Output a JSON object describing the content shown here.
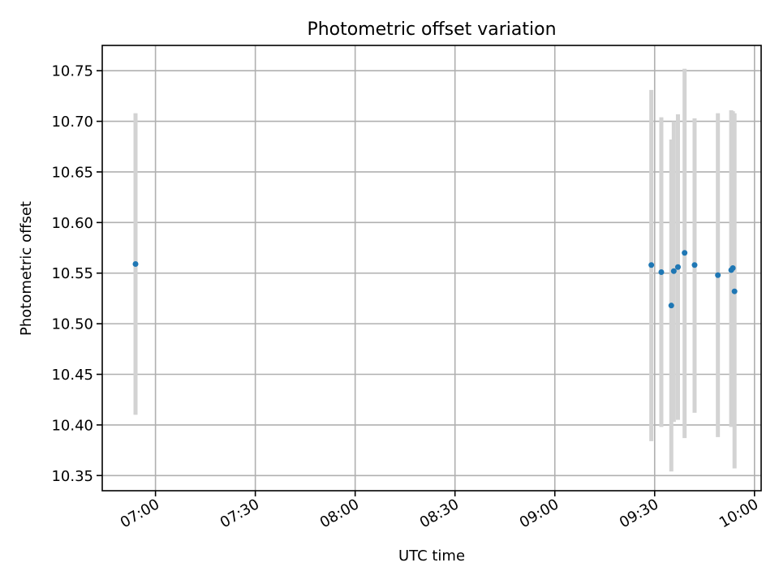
{
  "chart_data": {
    "type": "scatter",
    "title": "Photometric offset variation",
    "xlabel": "UTC time",
    "ylabel": "Photometric offset",
    "xlim": [
      "06:44",
      "10:02"
    ],
    "ylim": [
      10.335,
      10.775
    ],
    "xticks": [
      "07:00",
      "07:30",
      "08:00",
      "08:30",
      "09:00",
      "09:30",
      "10:00"
    ],
    "yticks": [
      "10.35",
      "10.40",
      "10.45",
      "10.50",
      "10.55",
      "10.60",
      "10.65",
      "10.70",
      "10.75"
    ],
    "grid": true,
    "colors": {
      "point": "#1f77b4",
      "errorbar": "#d3d3d3"
    },
    "series": [
      {
        "points": [
          {
            "x": "06:54",
            "y": 10.559,
            "ylow": 10.41,
            "yhigh": 10.708
          },
          {
            "x": "09:29",
            "y": 10.558,
            "ylow": 10.384,
            "yhigh": 10.731
          },
          {
            "x": "09:32",
            "y": 10.551,
            "ylow": 10.398,
            "yhigh": 10.704
          },
          {
            "x": "09:35",
            "y": 10.518,
            "ylow": 10.354,
            "yhigh": 10.682
          },
          {
            "x": "09:35:45",
            "y": 10.552,
            "ylow": 10.403,
            "yhigh": 10.7
          },
          {
            "x": "09:37",
            "y": 10.556,
            "ylow": 10.405,
            "yhigh": 10.707
          },
          {
            "x": "09:39",
            "y": 10.57,
            "ylow": 10.387,
            "yhigh": 10.752
          },
          {
            "x": "09:42",
            "y": 10.558,
            "ylow": 10.412,
            "yhigh": 10.703
          },
          {
            "x": "09:49",
            "y": 10.548,
            "ylow": 10.388,
            "yhigh": 10.708
          },
          {
            "x": "09:53",
            "y": 10.553,
            "ylow": 10.398,
            "yhigh": 10.711
          },
          {
            "x": "09:53:30",
            "y": 10.555,
            "ylow": 10.4,
            "yhigh": 10.71
          },
          {
            "x": "09:54",
            "y": 10.532,
            "ylow": 10.357,
            "yhigh": 10.708
          }
        ]
      }
    ]
  }
}
